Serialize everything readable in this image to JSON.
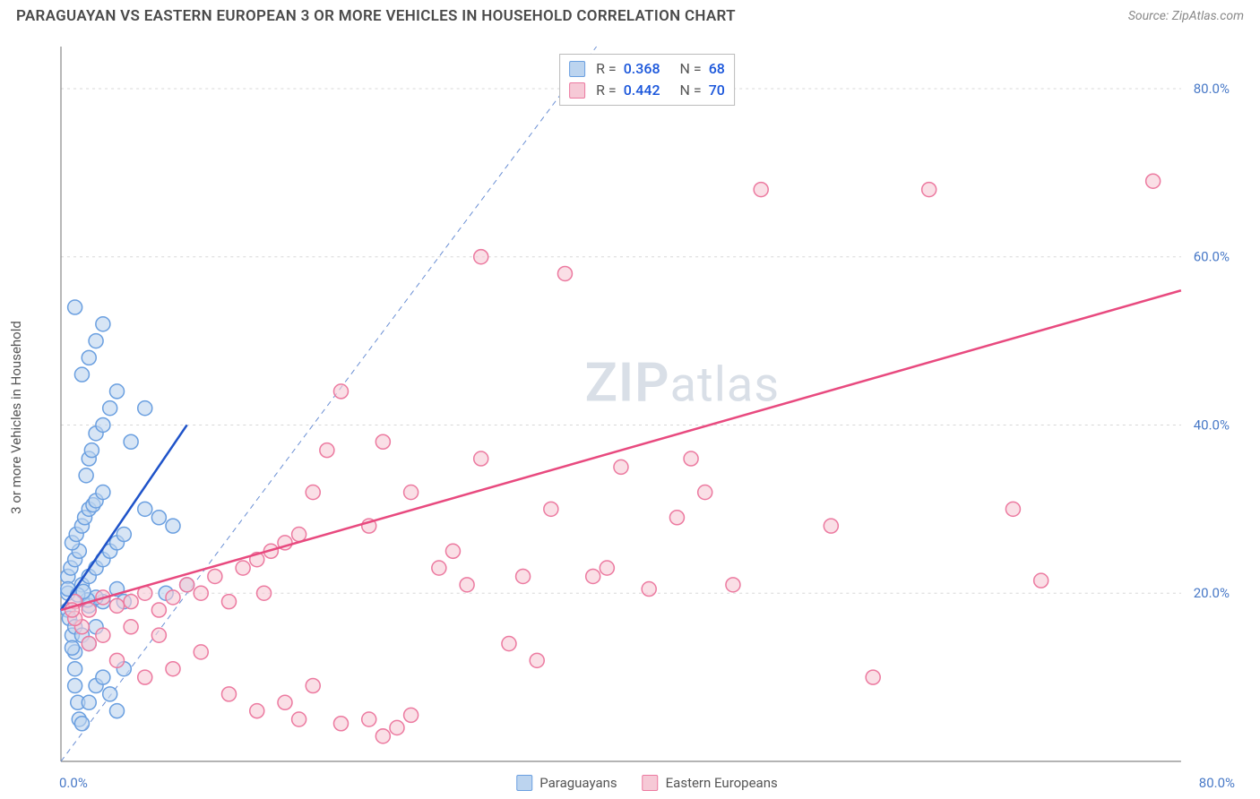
{
  "header": {
    "title": "PARAGUAYAN VS EASTERN EUROPEAN 3 OR MORE VEHICLES IN HOUSEHOLD CORRELATION CHART",
    "source_prefix": "Source: ",
    "source_name": "ZipAtlas.com"
  },
  "ylabel": "3 or more Vehicles in Household",
  "watermark": {
    "bold": "ZIP",
    "rest": "atlas"
  },
  "chart": {
    "type": "scatter",
    "background_color": "#ffffff",
    "grid_color": "#d8d8d8",
    "axis_color": "#888888",
    "tick_label_color": "#4879c7",
    "tick_fontsize": 15,
    "xlim": [
      0,
      80
    ],
    "ylim": [
      0,
      85
    ],
    "xtick_min_label": "0.0%",
    "xtick_max_label": "80.0%",
    "yticks": [
      20,
      40,
      60,
      80
    ],
    "ytick_labels": [
      "20.0%",
      "40.0%",
      "60.0%",
      "80.0%"
    ],
    "marker_radius": 8,
    "marker_stroke_width": 1.5,
    "trendline_width": 2.5,
    "identity_line": {
      "color": "#6a8fd4",
      "dash": "6 5",
      "width": 1
    },
    "series": [
      {
        "name": "Paraguayans",
        "legend_label": "Paraguayans",
        "fill": "#bcd4ef",
        "stroke": "#6a9fe0",
        "trend_color": "#1f53c9",
        "trend": {
          "x1": 0,
          "y1": 18,
          "x2": 9,
          "y2": 40
        },
        "R_label": "R =",
        "R": "0.368",
        "N_label": "N =",
        "N": "68",
        "points": [
          [
            0.5,
            18
          ],
          [
            0.5,
            20
          ],
          [
            0.6,
            17
          ],
          [
            0.8,
            15
          ],
          [
            1,
            13
          ],
          [
            1,
            11
          ],
          [
            1,
            9
          ],
          [
            1.2,
            7
          ],
          [
            1.3,
            5
          ],
          [
            1.5,
            4.5
          ],
          [
            0.5,
            22
          ],
          [
            0.7,
            23
          ],
          [
            1,
            24
          ],
          [
            1.3,
            25
          ],
          [
            0.8,
            26
          ],
          [
            1.1,
            27
          ],
          [
            1.5,
            28
          ],
          [
            1.7,
            29
          ],
          [
            2,
            30
          ],
          [
            2.3,
            30.5
          ],
          [
            2.5,
            31
          ],
          [
            3,
            32
          ],
          [
            1.5,
            21
          ],
          [
            2,
            22
          ],
          [
            2.5,
            23
          ],
          [
            3,
            24
          ],
          [
            3.5,
            25
          ],
          [
            4,
            26
          ],
          [
            4.5,
            27
          ],
          [
            2,
            18.5
          ],
          [
            1.8,
            34
          ],
          [
            2,
            36
          ],
          [
            2.2,
            37
          ],
          [
            2.5,
            39
          ],
          [
            3,
            40
          ],
          [
            3.5,
            42
          ],
          [
            4,
            44
          ],
          [
            1.5,
            46
          ],
          [
            2,
            48
          ],
          [
            2.5,
            50
          ],
          [
            3,
            52
          ],
          [
            1,
            54
          ],
          [
            6,
            30
          ],
          [
            7,
            29
          ],
          [
            8,
            28
          ],
          [
            9,
            21
          ],
          [
            5,
            38
          ],
          [
            6,
            42
          ],
          [
            2,
            7
          ],
          [
            2.5,
            9
          ],
          [
            3,
            10
          ],
          [
            3.5,
            8
          ],
          [
            4,
            6
          ],
          [
            4.5,
            11
          ],
          [
            1,
            16
          ],
          [
            1.5,
            15
          ],
          [
            0.8,
            13.5
          ],
          [
            2,
            14
          ],
          [
            2.5,
            16
          ],
          [
            0.5,
            20.5
          ],
          [
            7.5,
            20
          ],
          [
            3,
            19
          ],
          [
            4,
            20.5
          ],
          [
            4.5,
            19
          ],
          [
            2.5,
            19.5
          ],
          [
            1.9,
            19.2
          ],
          [
            1.2,
            19.8
          ],
          [
            1.6,
            20.2
          ]
        ]
      },
      {
        "name": "Eastern Europeans",
        "legend_label": "Eastern Europeans",
        "fill": "#f6c9d6",
        "stroke": "#ec7aa0",
        "trend_color": "#e84a7f",
        "trend": {
          "x1": 0,
          "y1": 18,
          "x2": 80,
          "y2": 56
        },
        "R_label": "R =",
        "R": "0.442",
        "N_label": "N =",
        "N": "70",
        "points": [
          [
            1,
            19
          ],
          [
            2,
            18
          ],
          [
            3,
            19.5
          ],
          [
            4,
            18.5
          ],
          [
            5,
            19
          ],
          [
            6,
            20
          ],
          [
            7,
            18
          ],
          [
            8,
            19.5
          ],
          [
            9,
            21
          ],
          [
            10,
            20
          ],
          [
            11,
            22
          ],
          [
            12,
            19
          ],
          [
            13,
            23
          ],
          [
            14,
            24
          ],
          [
            14.5,
            20
          ],
          [
            15,
            25
          ],
          [
            16,
            26
          ],
          [
            17,
            27
          ],
          [
            18,
            32
          ],
          [
            19,
            37
          ],
          [
            20,
            44
          ],
          [
            22,
            28
          ],
          [
            23,
            38
          ],
          [
            25,
            32
          ],
          [
            27,
            23
          ],
          [
            28,
            25
          ],
          [
            29,
            21
          ],
          [
            30,
            60
          ],
          [
            30,
            36
          ],
          [
            32,
            14
          ],
          [
            33,
            22
          ],
          [
            34,
            12
          ],
          [
            35,
            30
          ],
          [
            36,
            58
          ],
          [
            38,
            22
          ],
          [
            39,
            23
          ],
          [
            40,
            35
          ],
          [
            42,
            20.5
          ],
          [
            44,
            29
          ],
          [
            45,
            36
          ],
          [
            46,
            32
          ],
          [
            48,
            21
          ],
          [
            50,
            68
          ],
          [
            55,
            28
          ],
          [
            58,
            10
          ],
          [
            62,
            68
          ],
          [
            68,
            30
          ],
          [
            70,
            21.5
          ],
          [
            78,
            69
          ],
          [
            4,
            12
          ],
          [
            6,
            10
          ],
          [
            8,
            11
          ],
          [
            10,
            13
          ],
          [
            12,
            8
          ],
          [
            14,
            6
          ],
          [
            16,
            7
          ],
          [
            18,
            9
          ],
          [
            20,
            4.5
          ],
          [
            22,
            5
          ],
          [
            23,
            3
          ],
          [
            25,
            5.5
          ],
          [
            17,
            5
          ],
          [
            7,
            15
          ],
          [
            5,
            16
          ],
          [
            3,
            15
          ],
          [
            2,
            14
          ],
          [
            1.5,
            16
          ],
          [
            1,
            17
          ],
          [
            0.8,
            18
          ],
          [
            24,
            4
          ]
        ]
      }
    ]
  }
}
